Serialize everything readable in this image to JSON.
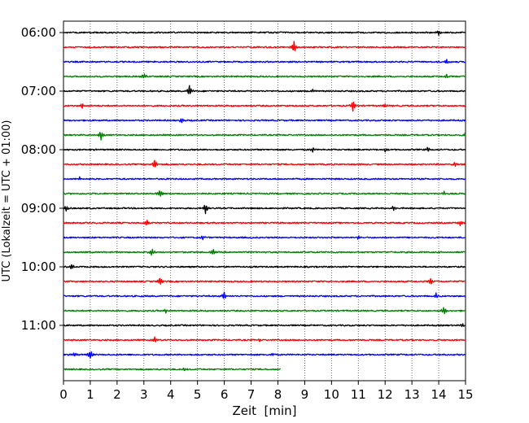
{
  "chart_data": {
    "type": "line",
    "title": "",
    "xlabel": "Zeit  [min]",
    "ylabel": "UTC (Lokalzeit = UTC + 01:00)",
    "xlim": [
      0,
      15
    ],
    "x_ticks": [
      0,
      1,
      2,
      3,
      4,
      5,
      6,
      7,
      8,
      9,
      10,
      11,
      12,
      13,
      14,
      15
    ],
    "y_ticks": [
      "06:00",
      "07:00",
      "08:00",
      "09:00",
      "10:00",
      "11:00"
    ],
    "grid": "vertical dotted",
    "trace_interval_min": 15,
    "color_cycle": [
      "#000000",
      "#ff0000",
      "#0000ff",
      "#008000"
    ],
    "traces": [
      {
        "start": "06:00",
        "end_min": 15,
        "events": [
          {
            "t": 14.0,
            "a": 0.5
          }
        ]
      },
      {
        "start": "06:15",
        "end_min": 15,
        "events": [
          {
            "t": 8.6,
            "a": 1.0
          }
        ]
      },
      {
        "start": "06:30",
        "end_min": 15,
        "events": [
          {
            "t": 14.3,
            "a": 0.5
          }
        ]
      },
      {
        "start": "06:45",
        "end_min": 15,
        "events": [
          {
            "t": 3.0,
            "a": 0.5
          },
          {
            "t": 14.3,
            "a": 0.4
          }
        ]
      },
      {
        "start": "07:00",
        "end_min": 15,
        "events": [
          {
            "t": 4.7,
            "a": 1.0
          },
          {
            "t": 9.3,
            "a": 0.3
          }
        ]
      },
      {
        "start": "07:15",
        "end_min": 15,
        "events": [
          {
            "t": 0.7,
            "a": 0.4
          },
          {
            "t": 10.8,
            "a": 1.0
          },
          {
            "t": 12.0,
            "a": 0.3
          }
        ]
      },
      {
        "start": "07:30",
        "end_min": 15,
        "events": [
          {
            "t": 4.4,
            "a": 0.5
          }
        ]
      },
      {
        "start": "07:45",
        "end_min": 15,
        "events": [
          {
            "t": 1.4,
            "a": 0.8
          },
          {
            "t": 15.0,
            "a": 0.4
          }
        ]
      },
      {
        "start": "08:00",
        "end_min": 15,
        "events": [
          {
            "t": 9.3,
            "a": 0.4
          },
          {
            "t": 12.0,
            "a": 0.3
          },
          {
            "t": 13.6,
            "a": 0.4
          }
        ]
      },
      {
        "start": "08:15",
        "end_min": 15,
        "events": [
          {
            "t": 3.4,
            "a": 0.8
          },
          {
            "t": 14.6,
            "a": 0.4
          }
        ]
      },
      {
        "start": "08:30",
        "end_min": 15,
        "events": [
          {
            "t": 0.6,
            "a": 0.3
          }
        ]
      },
      {
        "start": "08:45",
        "end_min": 15,
        "events": [
          {
            "t": 3.6,
            "a": 0.7
          },
          {
            "t": 14.2,
            "a": 0.4
          }
        ]
      },
      {
        "start": "09:00",
        "end_min": 15,
        "events": [
          {
            "t": 0.1,
            "a": 0.5
          },
          {
            "t": 5.3,
            "a": 0.9
          },
          {
            "t": 12.3,
            "a": 0.4
          }
        ]
      },
      {
        "start": "09:15",
        "end_min": 15,
        "events": [
          {
            "t": 3.1,
            "a": 0.7
          },
          {
            "t": 14.8,
            "a": 0.4
          }
        ]
      },
      {
        "start": "09:30",
        "end_min": 15,
        "events": [
          {
            "t": 5.2,
            "a": 0.4
          },
          {
            "t": 11.0,
            "a": 0.3
          }
        ]
      },
      {
        "start": "09:45",
        "end_min": 15,
        "events": [
          {
            "t": 3.3,
            "a": 0.7
          },
          {
            "t": 5.6,
            "a": 0.5
          }
        ]
      },
      {
        "start": "10:00",
        "end_min": 15,
        "events": [
          {
            "t": 0.3,
            "a": 0.5
          }
        ]
      },
      {
        "start": "10:15",
        "end_min": 15,
        "events": [
          {
            "t": 3.6,
            "a": 0.7
          },
          {
            "t": 13.7,
            "a": 0.5
          }
        ]
      },
      {
        "start": "10:30",
        "end_min": 15,
        "events": [
          {
            "t": 6.0,
            "a": 0.7
          },
          {
            "t": 13.9,
            "a": 0.4
          }
        ]
      },
      {
        "start": "10:45",
        "end_min": 15,
        "events": [
          {
            "t": 3.8,
            "a": 0.4
          },
          {
            "t": 14.2,
            "a": 0.8
          }
        ]
      },
      {
        "start": "11:00",
        "end_min": 15,
        "events": [
          {
            "t": 14.9,
            "a": 0.3
          }
        ]
      },
      {
        "start": "11:15",
        "end_min": 15,
        "events": [
          {
            "t": 3.4,
            "a": 0.5
          },
          {
            "t": 7.3,
            "a": 0.3
          }
        ]
      },
      {
        "start": "11:30",
        "end_min": 15,
        "events": [
          {
            "t": 0.4,
            "a": 0.4
          },
          {
            "t": 1.0,
            "a": 0.7
          },
          {
            "t": 7.8,
            "a": 0.3
          }
        ]
      },
      {
        "start": "11:45",
        "end_min": 8.1,
        "events": [
          {
            "t": 4.5,
            "a": 0.3
          }
        ]
      }
    ]
  }
}
